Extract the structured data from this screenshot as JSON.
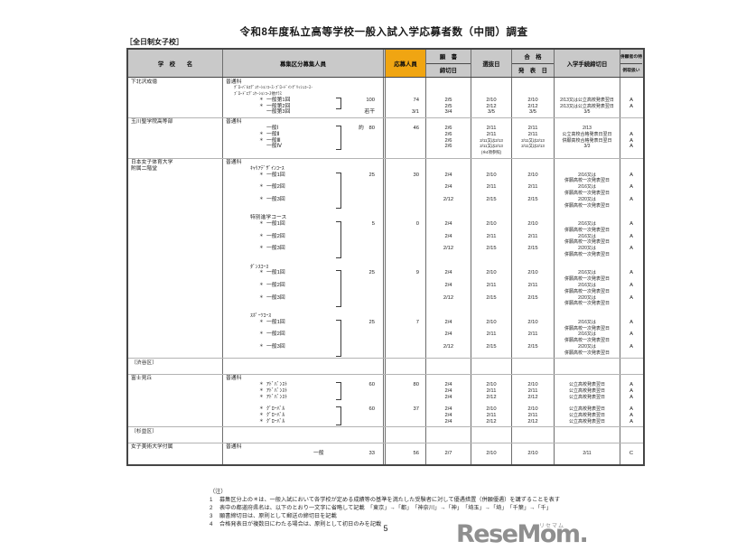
{
  "title": "令和8年度私立高等学校一般入試入学応募者数（中間）調査",
  "category_label": "［全日制女子校］",
  "page_number": "5",
  "logo": {
    "text": "ReseMom.",
    "furigana": "リセマム",
    "color": "#8f8f8f"
  },
  "table": {
    "accent_color": "#f0a512",
    "star_mark": "＊",
    "headers": {
      "school": "学　校　　名",
      "division": "募集区分",
      "capacity": "募集人員",
      "applicants": "応募人員",
      "deadline_top": "願　書",
      "deadline_bottom": "締切日",
      "exam": "選抜日",
      "result_top": "合　格",
      "result_bottom": "発　表　日",
      "procedure": "入学手続締切日",
      "special_top": "併願者の特",
      "special_bottom": "例取扱い"
    },
    "blocks": [
      {
        "lines": [
          {
            "school": "下北沢成徳",
            "label": "普通科",
            "pad": 3
          },
          {
            "label": "ｸﾞﾛｰﾊﾞﾙｴﾃﾞｭｹｰｼｮﾝｺｰｽ･ﾌﾞﾛｰﾄﾞｲﾝｸﾞﾘｯｼｭｺｰｽ･",
            "pad": 12,
            "small": true
          },
          {
            "label": "ﾌﾞﾛｰﾄﾞｴﾃﾞｭｹｰｼｮﾝｺｰｽ他ｸﾗｽ",
            "pad": 12,
            "small": true
          },
          {
            "label": "一般第1回",
            "pad": 48,
            "star": true,
            "capacity": "100",
            "applicants": "74",
            "deadline": "2/5",
            "exam": "2/10",
            "result": "2/10",
            "procedure": "2/13又は公立高校発表翌日",
            "special": "A"
          },
          {
            "label": "一般第2回",
            "pad": 48,
            "star": true,
            "deadline": "2/5",
            "exam": "2/12",
            "result": "2/12",
            "procedure": "2/13又は公立高校発表翌日",
            "special": "A"
          },
          {
            "label": "一般第3回",
            "pad": 48,
            "capacity": "若干",
            "applicants": "3/1",
            "deadline": "3/4",
            "exam": "3/5",
            "result": "3/5",
            "procedure": "3/5"
          }
        ],
        "brackets": [
          {
            "from": 3,
            "to": 4
          }
        ]
      },
      {
        "lines": [
          {
            "school": "玉川聖学院高等部",
            "label": "普通科",
            "pad": 3
          },
          {
            "label": "一般Ⅰ",
            "pad": 48,
            "capacity": "約　80",
            "applicants": "46",
            "deadline": "2/6",
            "exam": "2/11",
            "result": "2/11",
            "procedure": "2/13"
          },
          {
            "label": "一般Ⅱ",
            "pad": 48,
            "star": true,
            "deadline": "2/6",
            "exam": "2/11",
            "result": "2/11",
            "procedure": "公立高校合格発表日翌日",
            "special": "A"
          },
          {
            "label": "一般Ⅲ",
            "pad": 48,
            "star": true,
            "deadline": "2/6",
            "exam": "2/11又は2/13",
            "result": "2/11又は2/13",
            "procedure": "併願高校合格発表日翌日",
            "special": "A"
          },
          {
            "label": "一般Ⅳ",
            "pad": 48,
            "deadline": "2/6",
            "exam": "2/11又は2/13",
            "result": "2/11又は2/13",
            "procedure": "3/3",
            "special": "A"
          },
          {
            "exam": "(※4項参照)"
          }
        ],
        "brackets": [
          {
            "from": 1,
            "to": 4
          }
        ]
      },
      {
        "lines": [
          {
            "school": "日本女子体育大学",
            "label": "普通科",
            "pad": 3
          },
          {
            "school": "附属二階堂",
            "label": "ｷｬﾘｱﾃﾞｻﾞｲﾝｺｰｽ",
            "pad": 30
          },
          {
            "label": "一般1回",
            "pad": 48,
            "star": true,
            "capacity": "25",
            "applicants": "30",
            "deadline": "2/4",
            "exam": "2/10",
            "result": "2/10",
            "procedure": "2/16又は",
            "special": "A"
          },
          {
            "procedure": "併願高校一次発表翌日"
          },
          {
            "label": "一般2回",
            "pad": 48,
            "star": true,
            "deadline": "2/4",
            "exam": "2/11",
            "result": "2/11",
            "procedure": "2/16又は",
            "special": "A"
          },
          {
            "procedure": "併願高校一次発表翌日"
          },
          {
            "label": "一般3回",
            "pad": 48,
            "star": true,
            "deadline": "2/12",
            "exam": "2/15",
            "result": "2/15",
            "procedure": "2/20又は",
            "special": "A"
          },
          {
            "procedure": "併願高校一次発表翌日"
          },
          {},
          {
            "label": "特別進学コース",
            "pad": 30
          },
          {
            "label": "一般1回",
            "pad": 48,
            "star": true,
            "capacity": "5",
            "applicants": "0",
            "deadline": "2/4",
            "exam": "2/10",
            "result": "2/10",
            "procedure": "2/16又は",
            "special": "A"
          },
          {
            "procedure": "併願高校一次発表翌日"
          },
          {
            "label": "一般2回",
            "pad": 48,
            "star": true,
            "deadline": "2/4",
            "exam": "2/11",
            "result": "2/11",
            "procedure": "2/16又は",
            "special": "A"
          },
          {
            "procedure": "併願高校一次発表翌日"
          },
          {
            "label": "一般3回",
            "pad": 48,
            "star": true,
            "deadline": "2/12",
            "exam": "2/15",
            "result": "2/15",
            "procedure": "2/20又は",
            "special": "A"
          },
          {
            "procedure": "併願高校一次発表翌日"
          },
          {},
          {
            "label": "ﾀﾞﾝｽｺｰｽ",
            "pad": 30
          },
          {
            "label": "一般1回",
            "pad": 48,
            "star": true,
            "capacity": "25",
            "applicants": "9",
            "deadline": "2/4",
            "exam": "2/10",
            "result": "2/10",
            "procedure": "2/16又は",
            "special": "A"
          },
          {
            "procedure": "併願高校一次発表翌日"
          },
          {
            "label": "一般2回",
            "pad": 48,
            "star": true,
            "deadline": "2/4",
            "exam": "2/11",
            "result": "2/11",
            "procedure": "2/16又は",
            "special": "A"
          },
          {
            "procedure": "併願高校一次発表翌日"
          },
          {
            "label": "一般3回",
            "pad": 48,
            "star": true,
            "deadline": "2/12",
            "exam": "2/15",
            "result": "2/15",
            "procedure": "2/20又は",
            "special": "A"
          },
          {
            "procedure": "併願高校一次発表翌日"
          },
          {},
          {
            "label": "ｽﾎﾟｰﾂｺｰｽ",
            "pad": 30
          },
          {
            "label": "一般1回",
            "pad": 48,
            "star": true,
            "capacity": "25",
            "applicants": "7",
            "deadline": "2/4",
            "exam": "2/10",
            "result": "2/10",
            "procedure": "2/16又は",
            "special": "A"
          },
          {
            "procedure": "併願高校一次発表翌日"
          },
          {
            "label": "一般2回",
            "pad": 48,
            "star": true,
            "deadline": "2/4",
            "exam": "2/11",
            "result": "2/11",
            "procedure": "2/16又は",
            "special": "A"
          },
          {
            "procedure": "併願高校一次発表翌日"
          },
          {
            "label": "一般3回",
            "pad": 48,
            "star": true,
            "deadline": "2/12",
            "exam": "2/15",
            "result": "2/15",
            "procedure": "2/20又は",
            "special": "A"
          },
          {
            "procedure": "併願高校一次発表翌日"
          }
        ],
        "brackets": [
          {
            "from": 2,
            "to": 7
          },
          {
            "from": 10,
            "to": 15
          },
          {
            "from": 18,
            "to": 23
          },
          {
            "from": 26,
            "to": 31
          }
        ]
      },
      {
        "lines": [
          {
            "school": "〔渋谷区〕"
          },
          {}
        ]
      },
      {
        "lines": [
          {
            "school": "富士見丘",
            "label": "普通科",
            "pad": 3
          },
          {
            "label": "ｱﾄﾞﾊﾞﾝｽﾄ",
            "pad": 48,
            "star": true,
            "capacity": "60",
            "applicants": "80",
            "deadline": "2/4",
            "exam": "2/10",
            "result": "2/10",
            "procedure": "公立高校発表翌日",
            "special": "A"
          },
          {
            "label": "ｱﾄﾞﾊﾞﾝｽﾄ",
            "pad": 48,
            "star": true,
            "deadline": "2/4",
            "exam": "2/11",
            "result": "2/11",
            "procedure": "公立高校発表翌日",
            "special": "A"
          },
          {
            "label": "ｱﾄﾞﾊﾞﾝｽﾄ",
            "pad": 48,
            "star": true,
            "deadline": "2/4",
            "exam": "2/12",
            "result": "2/12",
            "procedure": "公立高校発表翌日",
            "special": "A"
          },
          {},
          {
            "label": "ｸﾞﾛｰﾊﾞﾙ",
            "pad": 48,
            "star": true,
            "capacity": "60",
            "applicants": "37",
            "deadline": "2/4",
            "exam": "2/10",
            "result": "2/10",
            "procedure": "公立高校発表翌日",
            "special": "A"
          },
          {
            "label": "ｸﾞﾛｰﾊﾞﾙ",
            "pad": 48,
            "star": true,
            "deadline": "2/4",
            "exam": "2/11",
            "result": "2/11",
            "procedure": "公立高校発表翌日",
            "special": "A"
          },
          {
            "label": "ｸﾞﾛｰﾊﾞﾙ",
            "pad": 48,
            "star": true,
            "deadline": "2/4",
            "exam": "2/12",
            "result": "2/12",
            "procedure": "公立高校発表翌日",
            "special": "A"
          }
        ],
        "brackets": [
          {
            "from": 1,
            "to": 3
          },
          {
            "from": 5,
            "to": 7
          }
        ]
      },
      {
        "lines": [
          {
            "school": "〔杉並区〕"
          },
          {}
        ]
      },
      {
        "lines": [
          {
            "school": "女子美術大学付属",
            "label": "普通科",
            "pad": 3
          },
          {
            "label": "一般",
            "pad": 100,
            "capacity": "33",
            "applicants": "56",
            "deadline": "2/7",
            "exam": "2/10",
            "result": "2/10",
            "procedure": "2/11",
            "special": "C"
          },
          {}
        ]
      }
    ]
  },
  "notes": {
    "label": "（注）",
    "items": [
      {
        "no": "1",
        "text": "募集区分上の＊は、一般入試において各学校が定める成績等の基準を満たした受験者に対して優遇措置（併願優遇）を講ずることを表す"
      },
      {
        "no": "2",
        "text": "表中の都道府県名は、以下のとおり一文字に省略して記載　「東京」→「都」　「神奈川」→「神」　「埼玉」→「埼」　「千葉」→「千」"
      },
      {
        "no": "3",
        "text": "願書締切日は、原則として郵送の締切日を記載"
      },
      {
        "no": "4",
        "text": "合格発表日が複数日にわたる場合は、原則として初日のみを記載"
      }
    ]
  }
}
